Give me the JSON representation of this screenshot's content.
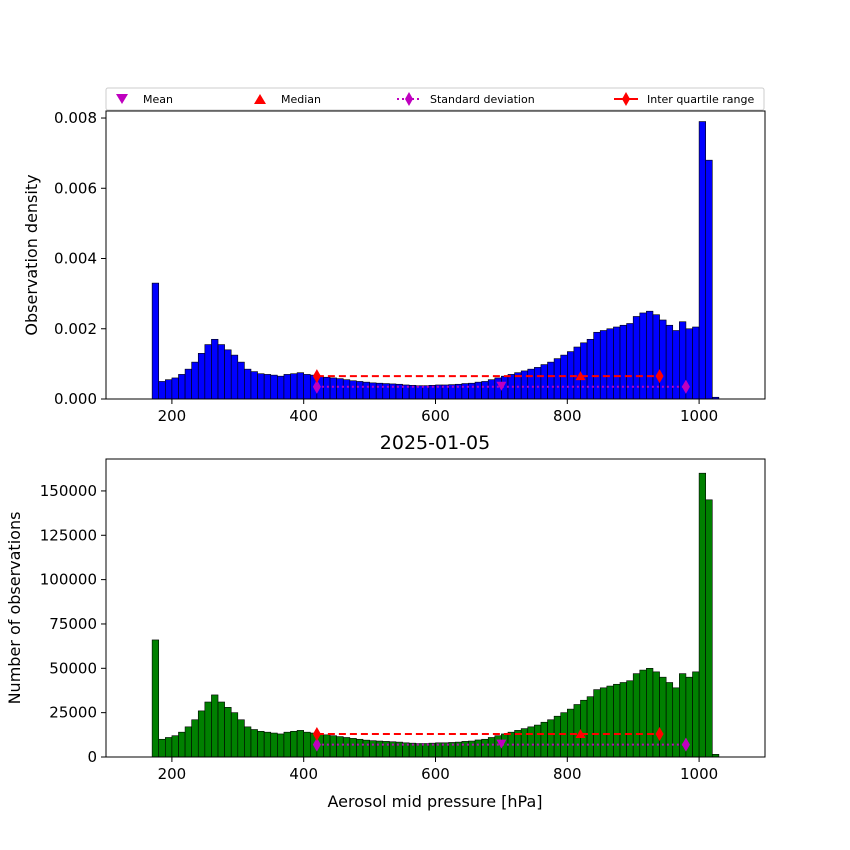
{
  "figure": {
    "title": "2025-01-05",
    "xlabel": "Aerosol mid pressure [hPa]"
  },
  "legend": [
    {
      "label": "Mean",
      "marker": "triangle-down",
      "color": "#bf00bf",
      "line": "none"
    },
    {
      "label": "Median",
      "marker": "triangle-up",
      "color": "#ff0000",
      "line": "none"
    },
    {
      "label": "Standard deviation",
      "marker": "thin-diamond",
      "color": "#bf00bf",
      "line": "dotted"
    },
    {
      "label": "Inter quartile range",
      "marker": "thin-diamond",
      "color": "#ff0000",
      "line": "solid"
    }
  ],
  "chart_data": [
    {
      "type": "bar",
      "subtype": "histogram",
      "ylabel": "Observation density",
      "xlim": [
        100,
        1100
      ],
      "ylim": [
        0,
        0.0082
      ],
      "xticks": [
        200,
        400,
        600,
        800,
        1000
      ],
      "yticks": [
        0.0,
        0.002,
        0.004,
        0.006,
        0.008
      ],
      "ytick_labels": [
        "0.000",
        "0.002",
        "0.004",
        "0.006",
        "0.008"
      ],
      "bar_color": "#0000ff",
      "edge_color": "#000000",
      "bin_start": 170,
      "bin_width": 10,
      "values": [
        0.0033,
        0.0005,
        0.00055,
        0.0006,
        0.0007,
        0.00085,
        0.00105,
        0.0013,
        0.00155,
        0.0017,
        0.00155,
        0.0014,
        0.00125,
        0.00105,
        0.00085,
        0.00078,
        0.00072,
        0.0007,
        0.00068,
        0.00065,
        0.0007,
        0.00072,
        0.00075,
        0.0007,
        0.00068,
        0.00065,
        0.00062,
        0.0006,
        0.00058,
        0.00055,
        0.00052,
        0.0005,
        0.00048,
        0.00046,
        0.00045,
        0.00044,
        0.00043,
        0.00042,
        0.0004,
        0.00039,
        0.00038,
        0.00038,
        0.00039,
        0.0004,
        0.0004,
        0.00041,
        0.00042,
        0.00044,
        0.00045,
        0.00048,
        0.0005,
        0.00055,
        0.0006,
        0.00065,
        0.0007,
        0.00075,
        0.0008,
        0.00085,
        0.0009,
        0.00098,
        0.00105,
        0.00115,
        0.00125,
        0.00135,
        0.00148,
        0.0016,
        0.0017,
        0.0019,
        0.00195,
        0.002,
        0.00205,
        0.0021,
        0.00215,
        0.00235,
        0.00245,
        0.0025,
        0.0024,
        0.00225,
        0.0021,
        0.00195,
        0.0022,
        0.002,
        0.00205,
        0.0079,
        0.0068,
        5e-05
      ],
      "stats": {
        "mean": {
          "x": 700,
          "y": 0.00035
        },
        "median": {
          "x": 820,
          "y": 0.00065
        },
        "std": {
          "x": [
            420,
            980
          ],
          "y": 0.00035
        },
        "iqr": {
          "x": [
            420,
            940
          ],
          "y": 0.00065
        }
      }
    },
    {
      "type": "bar",
      "subtype": "histogram",
      "ylabel": "Number of observations",
      "xlabel": "Aerosol mid pressure [hPa]",
      "xlim": [
        100,
        1100
      ],
      "ylim": [
        0,
        168000
      ],
      "xticks": [
        200,
        400,
        600,
        800,
        1000
      ],
      "yticks": [
        0,
        25000,
        50000,
        75000,
        100000,
        125000,
        150000
      ],
      "ytick_labels": [
        "0",
        "25000",
        "50000",
        "75000",
        "100000",
        "125000",
        "150000"
      ],
      "bar_color": "#008000",
      "edge_color": "#000000",
      "bin_start": 170,
      "bin_width": 10,
      "values": [
        66000,
        10000,
        11000,
        12000,
        14000,
        17000,
        21000,
        26000,
        31000,
        35000,
        31000,
        28000,
        25000,
        21000,
        17000,
        15500,
        14500,
        14000,
        13500,
        13000,
        14000,
        14500,
        15000,
        14000,
        13500,
        13000,
        12500,
        12000,
        11500,
        11000,
        10500,
        10000,
        9500,
        9200,
        9000,
        8800,
        8600,
        8400,
        8000,
        7800,
        7600,
        7600,
        7800,
        8000,
        8000,
        8200,
        8400,
        8800,
        9000,
        9600,
        10000,
        11000,
        12000,
        13000,
        14000,
        15000,
        16000,
        17000,
        18000,
        19600,
        21000,
        23000,
        25000,
        27000,
        29600,
        32000,
        34000,
        38000,
        39000,
        40000,
        41000,
        42000,
        43000,
        47000,
        49000,
        50000,
        48000,
        45000,
        42000,
        39000,
        47000,
        45000,
        48000,
        160000,
        145000,
        1500
      ],
      "stats": {
        "mean": {
          "x": 700,
          "y": 7000
        },
        "median": {
          "x": 820,
          "y": 13000
        },
        "std": {
          "x": [
            420,
            980
          ],
          "y": 7000
        },
        "iqr": {
          "x": [
            420,
            940
          ],
          "y": 13000
        }
      }
    }
  ]
}
